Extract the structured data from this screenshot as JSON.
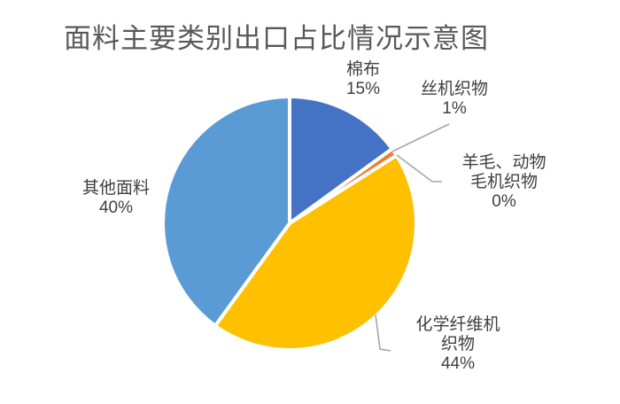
{
  "title": "面料主要类别出口占比情况示意图",
  "chart_data": {
    "type": "pie",
    "title": "面料主要类别出口占比情况示意图",
    "start_angle_deg": 0,
    "direction": "clockwise",
    "legend": "none",
    "label_style": "outside-category-and-percent-with-leader-lines",
    "slices": [
      {
        "name": "cotton",
        "label": "棉布",
        "value": 15,
        "pct_label": "15%",
        "color": "#4472C4"
      },
      {
        "name": "silk-woven",
        "label": "丝机织物",
        "value": 1,
        "pct_label": "1%",
        "color": "#ED7D31"
      },
      {
        "name": "wool-animal-hair",
        "label": "羊毛、动物毛机织物",
        "value": 0,
        "pct_label": "0%",
        "color": "#A5A5A5"
      },
      {
        "name": "chemical-fiber",
        "label": "化学纤维机织物",
        "value": 44,
        "pct_label": "44%",
        "color": "#FFC000"
      },
      {
        "name": "other-fabrics",
        "label": "其他面料",
        "value": 40,
        "pct_label": "40%",
        "color": "#5B9BD5"
      }
    ]
  },
  "colors": {
    "background": "#FFFFFF",
    "title_text": "#595959",
    "label_text": "#404040",
    "leader_line": "#A6A6A6",
    "slice_border": "#FFFFFF"
  }
}
